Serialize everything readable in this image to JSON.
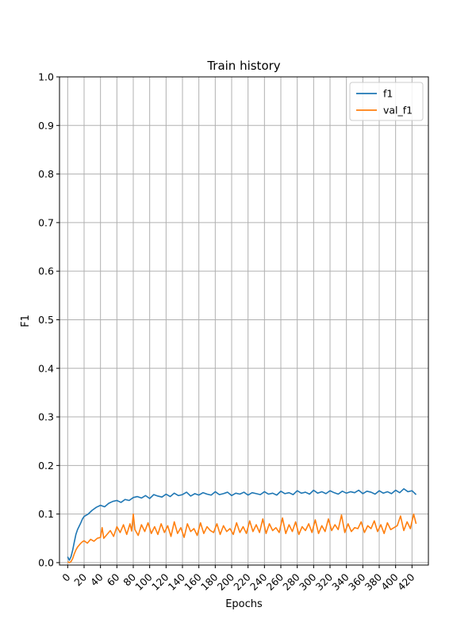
{
  "chart_data": {
    "type": "line",
    "title": "Train history",
    "xlabel": "Epochs",
    "ylabel": "F1",
    "xlim": [
      -10,
      440
    ],
    "ylim": [
      -0.005,
      1.0
    ],
    "grid": true,
    "legend_position": "top-right",
    "x_ticks": [
      0,
      20,
      40,
      60,
      80,
      100,
      120,
      140,
      160,
      180,
      200,
      220,
      240,
      260,
      280,
      300,
      320,
      340,
      360,
      380,
      400,
      420
    ],
    "y_ticks": [
      0.0,
      0.1,
      0.2,
      0.3,
      0.4,
      0.5,
      0.6,
      0.7,
      0.8,
      0.9,
      1.0
    ],
    "y_tick_labels": [
      "0.0",
      "0.1",
      "0.2",
      "0.3",
      "0.4",
      "0.5",
      "0.6",
      "0.7",
      "0.8",
      "0.9",
      "1.0"
    ],
    "series": [
      {
        "name": "f1",
        "color": "#1f77b4",
        "x": [
          0,
          2,
          4,
          6,
          8,
          10,
          12,
          14,
          16,
          18,
          20,
          25,
          30,
          35,
          40,
          45,
          50,
          55,
          60,
          65,
          70,
          75,
          80,
          85,
          90,
          95,
          100,
          105,
          110,
          115,
          120,
          125,
          130,
          135,
          140,
          145,
          150,
          155,
          160,
          165,
          170,
          175,
          180,
          185,
          190,
          195,
          200,
          205,
          210,
          215,
          220,
          225,
          230,
          235,
          240,
          245,
          250,
          255,
          260,
          265,
          270,
          275,
          280,
          285,
          290,
          295,
          300,
          305,
          310,
          315,
          320,
          325,
          330,
          335,
          340,
          345,
          350,
          355,
          360,
          365,
          370,
          375,
          380,
          385,
          390,
          395,
          400,
          405,
          410,
          415,
          420,
          425
        ],
        "y": [
          0.012,
          0.005,
          0.012,
          0.025,
          0.042,
          0.058,
          0.068,
          0.075,
          0.082,
          0.09,
          0.095,
          0.1,
          0.108,
          0.114,
          0.118,
          0.115,
          0.122,
          0.126,
          0.128,
          0.124,
          0.13,
          0.128,
          0.134,
          0.136,
          0.133,
          0.138,
          0.132,
          0.14,
          0.137,
          0.135,
          0.141,
          0.136,
          0.143,
          0.138,
          0.14,
          0.145,
          0.137,
          0.142,
          0.139,
          0.144,
          0.141,
          0.139,
          0.146,
          0.14,
          0.142,
          0.145,
          0.138,
          0.143,
          0.141,
          0.145,
          0.139,
          0.144,
          0.142,
          0.14,
          0.146,
          0.141,
          0.143,
          0.139,
          0.147,
          0.142,
          0.144,
          0.14,
          0.148,
          0.143,
          0.145,
          0.141,
          0.149,
          0.143,
          0.146,
          0.142,
          0.148,
          0.144,
          0.141,
          0.147,
          0.143,
          0.146,
          0.144,
          0.149,
          0.142,
          0.147,
          0.145,
          0.141,
          0.148,
          0.143,
          0.146,
          0.142,
          0.149,
          0.144,
          0.152,
          0.146,
          0.148,
          0.14
        ]
      },
      {
        "name": "val_f1",
        "color": "#ff7f0e",
        "x": [
          0,
          2,
          4,
          6,
          8,
          10,
          12,
          14,
          16,
          18,
          20,
          24,
          28,
          32,
          36,
          40,
          42,
          44,
          48,
          52,
          56,
          60,
          64,
          68,
          72,
          76,
          78,
          80,
          82,
          86,
          90,
          94,
          98,
          102,
          106,
          110,
          114,
          118,
          122,
          126,
          130,
          134,
          138,
          142,
          146,
          150,
          154,
          158,
          162,
          166,
          170,
          174,
          178,
          182,
          186,
          190,
          194,
          198,
          202,
          206,
          210,
          214,
          218,
          222,
          226,
          230,
          234,
          238,
          242,
          246,
          250,
          254,
          258,
          262,
          266,
          270,
          274,
          278,
          282,
          286,
          290,
          294,
          298,
          302,
          306,
          310,
          314,
          318,
          322,
          326,
          330,
          334,
          338,
          342,
          346,
          350,
          354,
          358,
          362,
          366,
          370,
          374,
          378,
          382,
          386,
          390,
          394,
          398,
          402,
          406,
          410,
          414,
          418,
          422,
          425
        ],
        "y": [
          0.002,
          0.0,
          0.002,
          0.008,
          0.018,
          0.026,
          0.032,
          0.036,
          0.04,
          0.043,
          0.045,
          0.04,
          0.048,
          0.044,
          0.05,
          0.052,
          0.072,
          0.05,
          0.058,
          0.066,
          0.054,
          0.074,
          0.062,
          0.078,
          0.058,
          0.08,
          0.065,
          0.1,
          0.068,
          0.056,
          0.078,
          0.064,
          0.082,
          0.06,
          0.074,
          0.058,
          0.08,
          0.062,
          0.076,
          0.054,
          0.084,
          0.06,
          0.072,
          0.052,
          0.08,
          0.064,
          0.07,
          0.056,
          0.082,
          0.06,
          0.074,
          0.066,
          0.062,
          0.08,
          0.058,
          0.076,
          0.064,
          0.07,
          0.058,
          0.082,
          0.062,
          0.074,
          0.06,
          0.086,
          0.064,
          0.078,
          0.062,
          0.09,
          0.06,
          0.08,
          0.066,
          0.072,
          0.062,
          0.092,
          0.06,
          0.078,
          0.064,
          0.084,
          0.058,
          0.074,
          0.066,
          0.08,
          0.062,
          0.088,
          0.06,
          0.076,
          0.064,
          0.09,
          0.066,
          0.078,
          0.068,
          0.098,
          0.062,
          0.08,
          0.064,
          0.072,
          0.07,
          0.084,
          0.062,
          0.076,
          0.07,
          0.086,
          0.064,
          0.078,
          0.06,
          0.082,
          0.068,
          0.072,
          0.076,
          0.096,
          0.066,
          0.084,
          0.07,
          0.1,
          0.08
        ]
      }
    ]
  }
}
